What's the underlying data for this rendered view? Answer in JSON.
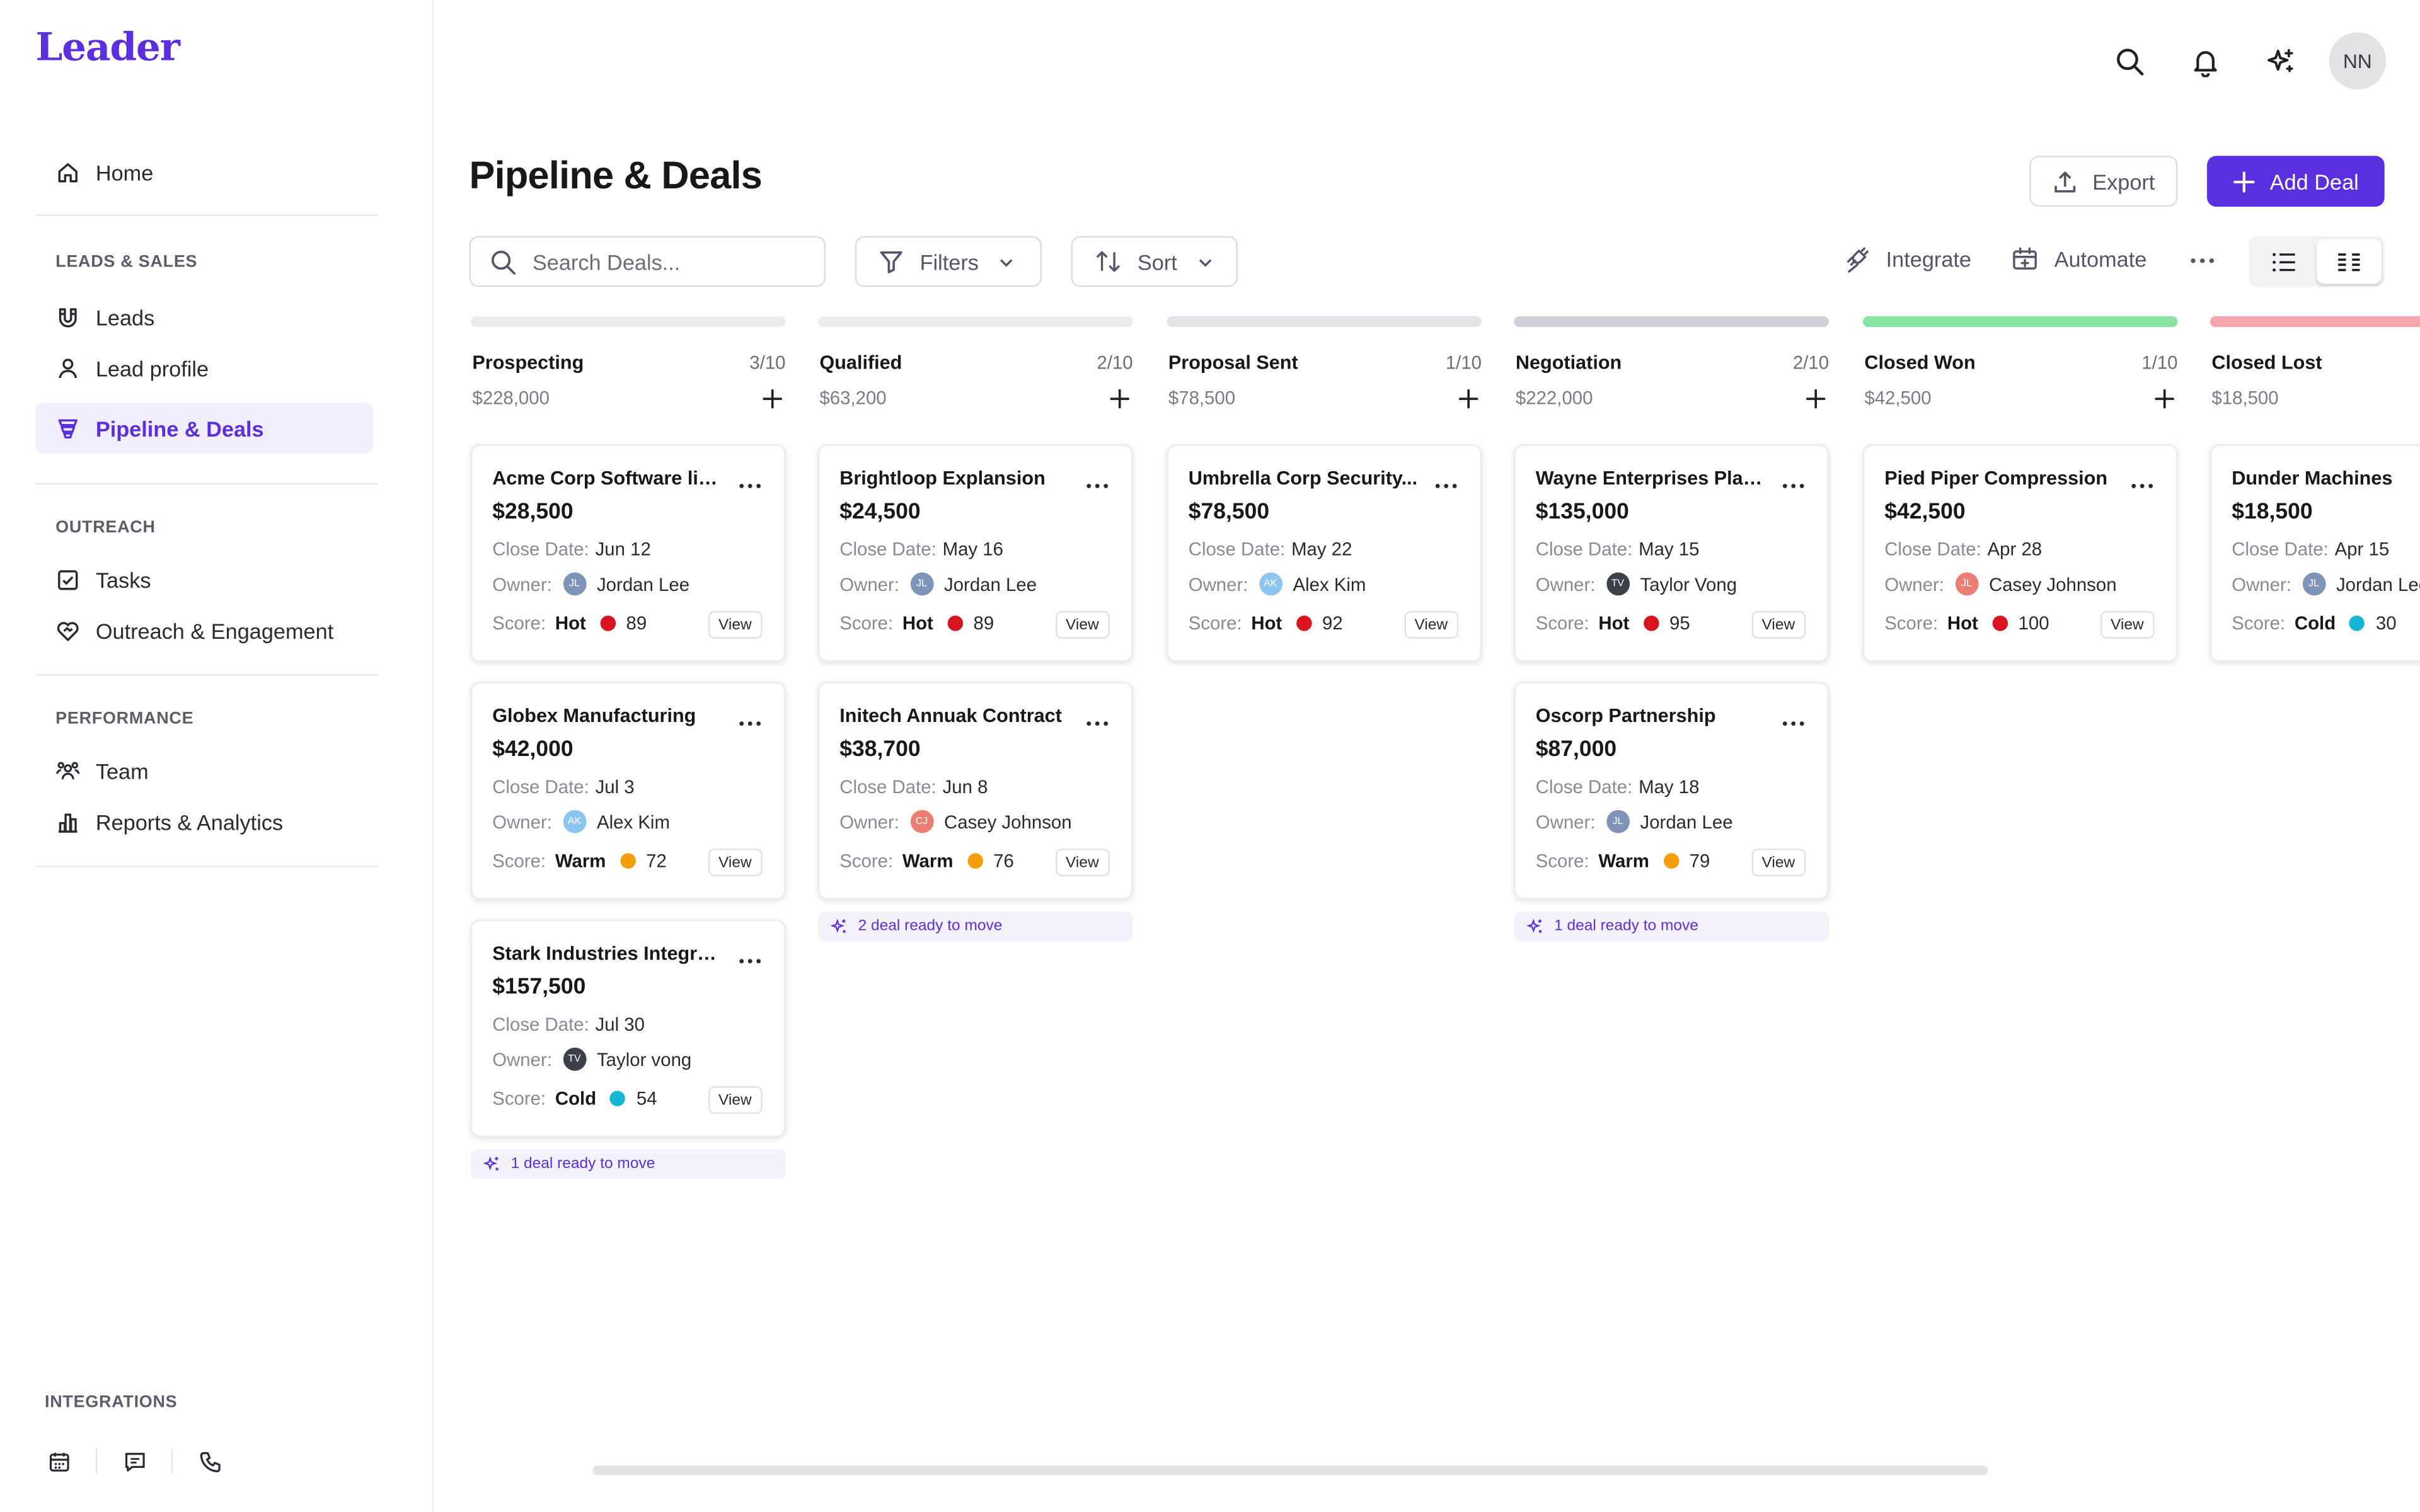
{
  "app": {
    "logo": "Leader"
  },
  "nav": {
    "home": "Home",
    "sections": [
      {
        "title": "LEADS & SALES",
        "items": [
          "Leads",
          "Lead profile",
          "Pipeline & Deals"
        ]
      },
      {
        "title": "OUTREACH",
        "items": [
          "Tasks",
          "Outreach & Engagement"
        ]
      },
      {
        "title": "PERFORMANCE",
        "items": [
          "Team",
          "Reports & Analytics"
        ]
      }
    ],
    "active_item": "Pipeline & Deals",
    "integrations_label": "INTEGRATIONS"
  },
  "topbar": {
    "avatar": "NN"
  },
  "page": {
    "title": "Pipeline & Deals",
    "export_label": "Export",
    "add_deal_label": "Add Deal",
    "search_placeholder": "Search Deals...",
    "filters_label": "Filters",
    "sort_label": "Sort",
    "integrate_label": "Integrate",
    "automate_label": "Automate",
    "view_mode": "board"
  },
  "colors": {
    "accent": "#5b2fe0",
    "hot": "#d7141f",
    "warm": "#f59e0b",
    "cold": "#14b8d4",
    "won": "#86e3a1",
    "lost": "#f5a5ad"
  },
  "columns": [
    {
      "name": "Prospecting",
      "count": "3/10",
      "total": "$228,000",
      "bar_color": "#ececf0",
      "ready": "1 deal ready to move",
      "deals": [
        {
          "title": "Acme Corp Software lic...",
          "amount": "$28,500",
          "close": "Jun 12",
          "owner": "Jordan Lee",
          "initials": "JL",
          "av_color": "#7d93b8",
          "score_label": "Hot",
          "score_color": "#d7141f",
          "score": "89"
        },
        {
          "title": "Globex Manufacturing",
          "amount": "$42,000",
          "close": "Jul 3",
          "owner": "Alex Kim",
          "initials": "AK",
          "av_color": "#8cc6f0",
          "score_label": "Warm",
          "score_color": "#f59e0b",
          "score": "72"
        },
        {
          "title": "Stark Industries Integrat...",
          "amount": "$157,500",
          "close": "Jul 30",
          "owner": "Taylor vong",
          "initials": "TV",
          "av_color": "#3c4048",
          "score_label": "Cold",
          "score_color": "#14b8d4",
          "score": "54"
        }
      ]
    },
    {
      "name": "Qualified",
      "count": "2/10",
      "total": "$63,200",
      "bar_color": "#ececf0",
      "ready": "2 deal ready to move",
      "deals": [
        {
          "title": "Brightloop Explansion",
          "amount": "$24,500",
          "close": "May 16",
          "owner": "Jordan Lee",
          "initials": "JL",
          "av_color": "#7d93b8",
          "score_label": "Hot",
          "score_color": "#d7141f",
          "score": "89"
        },
        {
          "title": "Initech Annuak Contract",
          "amount": "$38,700",
          "close": "Jun 8",
          "owner": "Casey Johnson",
          "initials": "CJ",
          "av_color": "#ec7f73",
          "score_label": "Warm",
          "score_color": "#f59e0b",
          "score": "76"
        }
      ]
    },
    {
      "name": "Proposal Sent",
      "count": "1/10",
      "total": "$78,500",
      "bar_color": "#e3e3e8",
      "ready": "",
      "deals": [
        {
          "title": "Umbrella Corp Security...",
          "amount": "$78,500",
          "close": "May 22",
          "owner": "Alex Kim",
          "initials": "AK",
          "av_color": "#8cc6f0",
          "score_label": "Hot",
          "score_color": "#d7141f",
          "score": "92"
        }
      ]
    },
    {
      "name": "Negotiation",
      "count": "2/10",
      "total": "$222,000",
      "bar_color": "#d0d0d8",
      "ready": "1 deal ready to move",
      "deals": [
        {
          "title": "Wayne Enterprises Platf...",
          "amount": "$135,000",
          "close": "May 15",
          "owner": "Taylor Vong",
          "initials": "TV",
          "av_color": "#3c4048",
          "score_label": "Hot",
          "score_color": "#d7141f",
          "score": "95"
        },
        {
          "title": "Oscorp Partnership",
          "amount": "$87,000",
          "close": "May 18",
          "owner": "Jordan Lee",
          "initials": "JL",
          "av_color": "#7d93b8",
          "score_label": "Warm",
          "score_color": "#f59e0b",
          "score": "79"
        }
      ]
    },
    {
      "name": "Closed Won",
      "count": "1/10",
      "total": "$42,500",
      "bar_color": "#86e3a1",
      "ready": "",
      "deals": [
        {
          "title": "Pied Piper Compression",
          "amount": "$42,500",
          "close": "Apr 28",
          "owner": "Casey Johnson",
          "initials": "JL",
          "av_color": "#ec7f73",
          "score_label": "Hot",
          "score_color": "#d7141f",
          "score": "100"
        }
      ]
    },
    {
      "name": "Closed Lost",
      "count": "",
      "total": "$18,500",
      "bar_color": "#f5a5ad",
      "ready": "",
      "deals": [
        {
          "title": "Dunder Machines",
          "amount": "$18,500",
          "close": "Apr 15",
          "owner": "Jordan Lee",
          "initials": "JL",
          "av_color": "#7d93b8",
          "score_label": "Cold",
          "score_color": "#14b8d4",
          "score": "30"
        }
      ]
    }
  ],
  "labels": {
    "close_date": "Close Date:",
    "owner": "Owner:",
    "score": "Score:",
    "view": "View"
  }
}
